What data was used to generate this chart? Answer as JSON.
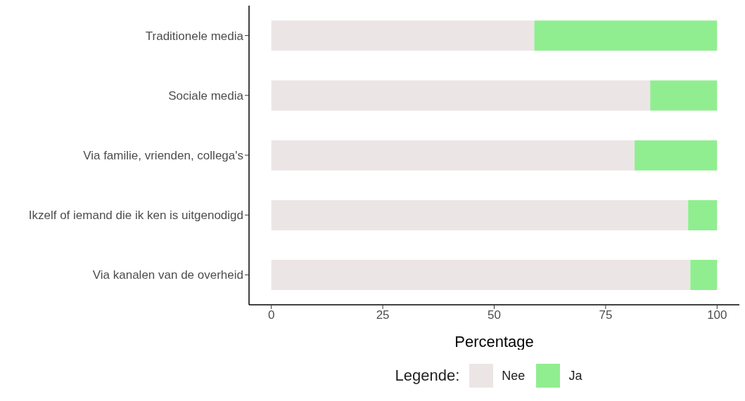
{
  "chart_data": {
    "type": "bar",
    "orientation": "horizontal",
    "stacked": true,
    "xlabel": "Percentage",
    "legend_title": "Legende:",
    "legend": "bottom",
    "grid": false,
    "categories": [
      "Traditionele media",
      "Sociale media",
      "Via familie, vrienden, collega's",
      "Ikzelf of iemand die ik ken is uitgenodigd",
      "Via kanalen van de overheid"
    ],
    "series": [
      {
        "name": "Nee",
        "color": "#ebe6e5",
        "values": [
          59,
          85,
          81.5,
          93.5,
          94
        ]
      },
      {
        "name": "Ja",
        "color": "#90ee90",
        "values": [
          41,
          15,
          18.5,
          6.5,
          6
        ]
      }
    ],
    "xlim": [
      -5,
      105
    ],
    "xticks": [
      0,
      25,
      50,
      75,
      100
    ]
  }
}
